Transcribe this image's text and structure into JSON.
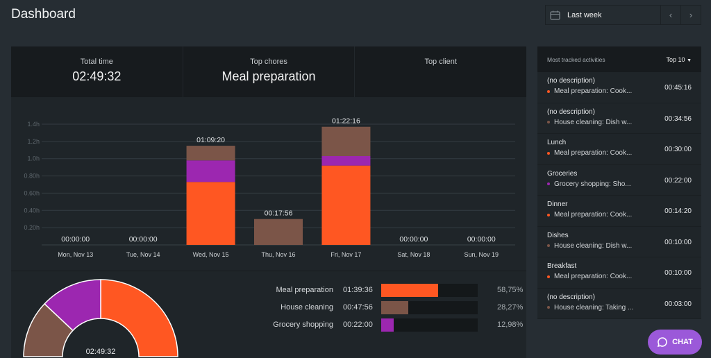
{
  "header": {
    "title": "Dashboard",
    "date_range": "Last week",
    "prev": "‹",
    "next": "›"
  },
  "stats": [
    {
      "label": "Total time",
      "value": "02:49:32"
    },
    {
      "label": "Top chores",
      "value": "Meal preparation"
    },
    {
      "label": "Top client",
      "value": ""
    }
  ],
  "colors": {
    "meal": "#ff5722",
    "cleaning": "#7b5548",
    "grocery": "#9c27b0"
  },
  "chart_data": {
    "type": "bar",
    "stacked": true,
    "categories": [
      "Mon, Nov 13",
      "Tue, Nov 14",
      "Wed, Nov 15",
      "Thu, Nov 16",
      "Fri, Nov 17",
      "Sat, Nov 18",
      "Sun, Nov 19"
    ],
    "series": [
      {
        "key": "meal",
        "values": [
          0,
          0,
          0.73,
          0,
          0.92,
          0,
          0
        ]
      },
      {
        "key": "grocery",
        "values": [
          0,
          0,
          0.25,
          0,
          0.11,
          0,
          0
        ]
      },
      {
        "key": "cleaning",
        "values": [
          0,
          0,
          0.17,
          0.3,
          0.34,
          0,
          0
        ]
      }
    ],
    "totals": [
      "00:00:00",
      "00:00:00",
      "01:09:20",
      "00:17:56",
      "01:22:16",
      "00:00:00",
      "00:00:00"
    ],
    "yticks": [
      "0.20h",
      "0.40h",
      "0.60h",
      "0.80h",
      "1.0h",
      "1.2h",
      "1.4h"
    ],
    "ylim": [
      0,
      1.4
    ],
    "grid": true
  },
  "donut": {
    "center_label": "02:49:32",
    "slices": [
      {
        "key": "meal",
        "percent": 58.75
      },
      {
        "key": "cleaning",
        "percent": 28.27
      },
      {
        "key": "grocery",
        "percent": 12.98
      }
    ]
  },
  "legend": [
    {
      "name": "Meal preparation",
      "time": "01:39:36",
      "percent": "58,75%",
      "value": 58.75,
      "key": "meal"
    },
    {
      "name": "House cleaning",
      "time": "00:47:56",
      "percent": "28,27%",
      "value": 28.27,
      "key": "cleaning"
    },
    {
      "name": "Grocery shopping",
      "time": "00:22:00",
      "percent": "12,98%",
      "value": 12.98,
      "key": "grocery"
    }
  ],
  "activities": {
    "title": "Most tracked activities",
    "filter": "Top 10",
    "items": [
      {
        "desc": "(no description)",
        "project": "Meal preparation: Cook...",
        "key": "meal",
        "time": "00:45:16"
      },
      {
        "desc": "(no description)",
        "project": "House cleaning: Dish w...",
        "key": "cleaning",
        "time": "00:34:56"
      },
      {
        "desc": "Lunch",
        "project": "Meal preparation: Cook...",
        "key": "meal",
        "time": "00:30:00"
      },
      {
        "desc": "Groceries",
        "project": "Grocery shopping: Sho...",
        "key": "grocery",
        "time": "00:22:00"
      },
      {
        "desc": "Dinner",
        "project": "Meal preparation: Cook...",
        "key": "meal",
        "time": "00:14:20"
      },
      {
        "desc": "Dishes",
        "project": "House cleaning: Dish w...",
        "key": "cleaning",
        "time": "00:10:00"
      },
      {
        "desc": "Breakfast",
        "project": "Meal preparation: Cook...",
        "key": "meal",
        "time": "00:10:00"
      },
      {
        "desc": "(no description)",
        "project": "House cleaning: Taking ...",
        "key": "cleaning",
        "time": "00:03:00"
      }
    ]
  },
  "chat": {
    "label": "CHAT"
  }
}
